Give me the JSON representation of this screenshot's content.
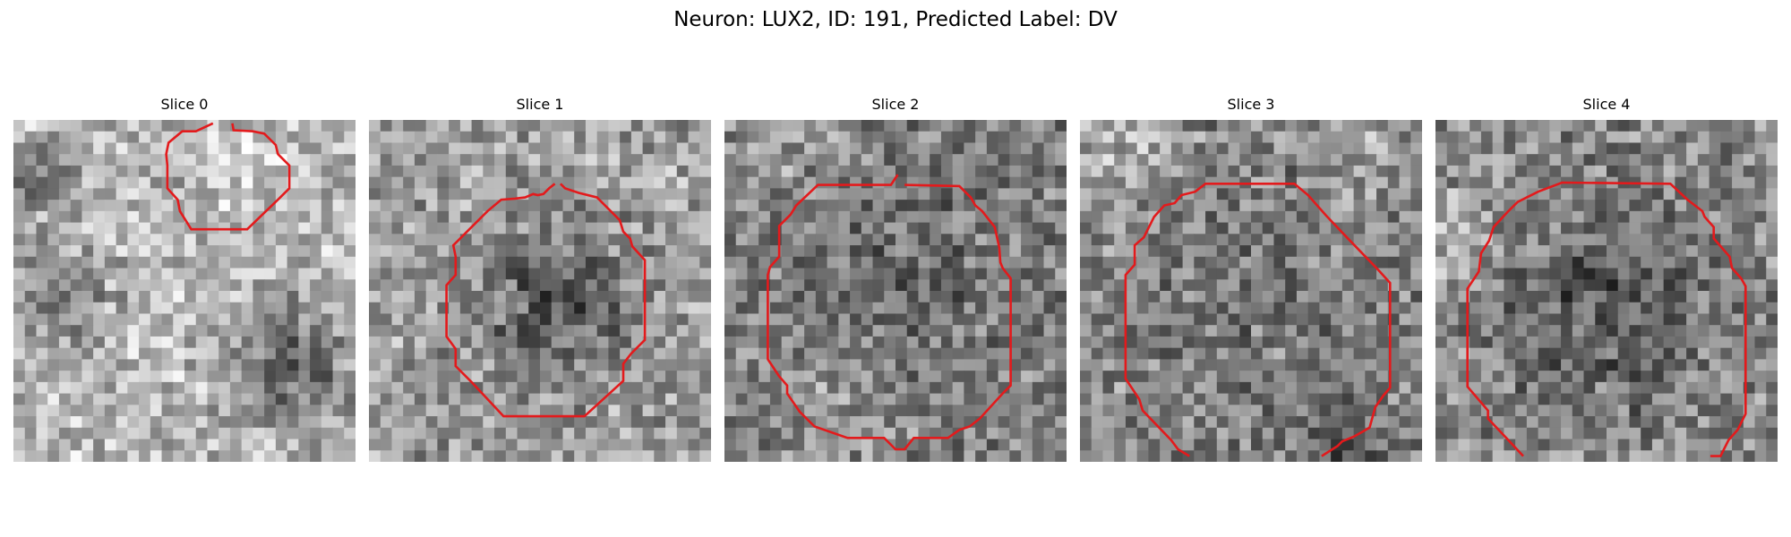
{
  "figure": {
    "title": "Neuron: LUX2, ID: 191, Predicted Label: DV",
    "contour_color": "#e31a1c",
    "colormap": "gray",
    "grid_size": 30
  },
  "panels": [
    {
      "title": "Slice 0",
      "pattern": "bright-textured",
      "contour": "small-upper"
    },
    {
      "title": "Slice 1",
      "pattern": "dark-center",
      "contour": "octagon-medium"
    },
    {
      "title": "Slice 2",
      "pattern": "gray-mottled",
      "contour": "octagon-large"
    },
    {
      "title": "Slice 3",
      "pattern": "gray-mottled-light-edge",
      "contour": "octagon-large-open"
    },
    {
      "title": "Slice 4",
      "pattern": "dark-center-large",
      "contour": "octagon-large-open-left"
    }
  ]
}
